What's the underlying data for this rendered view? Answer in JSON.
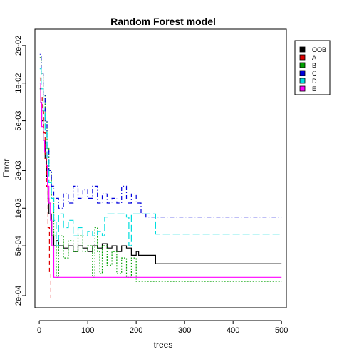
{
  "chart_data": {
    "type": "line",
    "title": "Random Forest model",
    "xlabel": "trees",
    "ylabel": "Error",
    "xlim": [
      -9,
      510
    ],
    "ylim": [
      0.00016,
      0.027
    ],
    "ylog": true,
    "xticks": [
      0,
      100,
      200,
      300,
      400,
      500
    ],
    "yticks": [
      0.0002,
      0.0005,
      0.001,
      0.002,
      0.005,
      0.01,
      0.02
    ],
    "ytick_labels": [
      "2e-04",
      "5e-04",
      "1e-03",
      "2e-03",
      "5e-03",
      "1e-02",
      "2e-02"
    ],
    "legend_position": "top-right",
    "series": [
      {
        "name": "OOB",
        "color": "#000000",
        "dash": "solid",
        "step": true,
        "x": [
          1,
          3,
          5,
          8,
          12,
          15,
          18,
          20,
          25,
          30,
          35,
          40,
          50,
          60,
          70,
          80,
          90,
          100,
          110,
          120,
          130,
          140,
          150,
          160,
          170,
          180,
          190,
          200,
          205,
          220,
          240,
          500
        ],
        "y": [
          0.009,
          0.007,
          0.005,
          0.0035,
          0.0025,
          0.0018,
          0.0012,
          0.0009,
          0.0006,
          0.0005,
          0.00055,
          0.0005,
          0.00048,
          0.0005,
          0.00045,
          0.0005,
          0.00048,
          0.00045,
          0.0005,
          0.00048,
          0.00052,
          0.00048,
          0.0005,
          0.00045,
          0.0005,
          0.00048,
          0.00042,
          0.00045,
          0.00042,
          0.00042,
          0.00036,
          0.00036
        ]
      },
      {
        "name": "A",
        "color": "#dd0000",
        "dash": "dashed",
        "step": true,
        "x": [
          1,
          3,
          6,
          9,
          12,
          15,
          18,
          21,
          24
        ],
        "y": [
          0.011,
          0.008,
          0.006,
          0.004,
          0.0025,
          0.0015,
          0.0007,
          0.0003,
          0.00019
        ]
      },
      {
        "name": "B",
        "color": "#00a000",
        "dash": "dotted",
        "step": true,
        "x": [
          1,
          4,
          8,
          12,
          16,
          20,
          25,
          30,
          35,
          40,
          50,
          60,
          70,
          80,
          90,
          100,
          110,
          115,
          120,
          125,
          130,
          140,
          150,
          160,
          170,
          180,
          190,
          200,
          500
        ],
        "y": [
          0.016,
          0.012,
          0.008,
          0.005,
          0.003,
          0.002,
          0.0012,
          0.0006,
          0.00028,
          0.0006,
          0.0004,
          0.00055,
          0.00045,
          0.0006,
          0.00045,
          0.0005,
          0.00028,
          0.0007,
          0.00045,
          0.0003,
          0.0005,
          0.00035,
          0.00045,
          0.0003,
          0.0004,
          0.00028,
          0.0004,
          0.00026,
          0.00026
        ]
      },
      {
        "name": "C",
        "color": "#0000dd",
        "dash": "dotdash",
        "step": true,
        "x": [
          1,
          4,
          8,
          12,
          16,
          20,
          25,
          30,
          40,
          50,
          60,
          70,
          80,
          90,
          100,
          110,
          120,
          130,
          140,
          150,
          160,
          170,
          180,
          190,
          200,
          210,
          220,
          500
        ],
        "y": [
          0.017,
          0.012,
          0.008,
          0.005,
          0.003,
          0.002,
          0.0015,
          0.0012,
          0.001,
          0.0013,
          0.0011,
          0.0015,
          0.0012,
          0.0014,
          0.0012,
          0.0015,
          0.0011,
          0.0013,
          0.0011,
          0.0012,
          0.0011,
          0.0015,
          0.0011,
          0.0013,
          0.0011,
          0.0009,
          0.00085,
          0.00085
        ]
      },
      {
        "name": "D",
        "color": "#00dddd",
        "dash": "longdash",
        "step": true,
        "x": [
          1,
          4,
          8,
          12,
          16,
          20,
          25,
          30,
          35,
          40,
          50,
          60,
          70,
          80,
          90,
          100,
          110,
          120,
          130,
          135,
          140,
          150,
          160,
          170,
          180,
          185,
          190,
          200,
          240,
          500
        ],
        "y": [
          0.013,
          0.009,
          0.006,
          0.004,
          0.0025,
          0.0016,
          0.0012,
          0.0008,
          0.0005,
          0.0009,
          0.0007,
          0.0008,
          0.0006,
          0.0007,
          0.0006,
          0.00065,
          0.0006,
          0.00065,
          0.0006,
          0.00085,
          0.0009,
          0.0009,
          0.0009,
          0.0009,
          0.00085,
          0.0005,
          0.0009,
          0.0009,
          0.00062,
          0.00062
        ]
      },
      {
        "name": "E",
        "color": "#ff00ff",
        "dash": "solid",
        "step": true,
        "x": [
          1,
          3,
          5,
          8,
          11,
          14,
          17,
          20,
          23,
          26,
          30,
          500
        ],
        "y": [
          0.01,
          0.007,
          0.0045,
          0.0035,
          0.0028,
          0.0022,
          0.0015,
          0.0011,
          0.0008,
          0.0005,
          0.00028,
          0.00028
        ]
      }
    ]
  }
}
